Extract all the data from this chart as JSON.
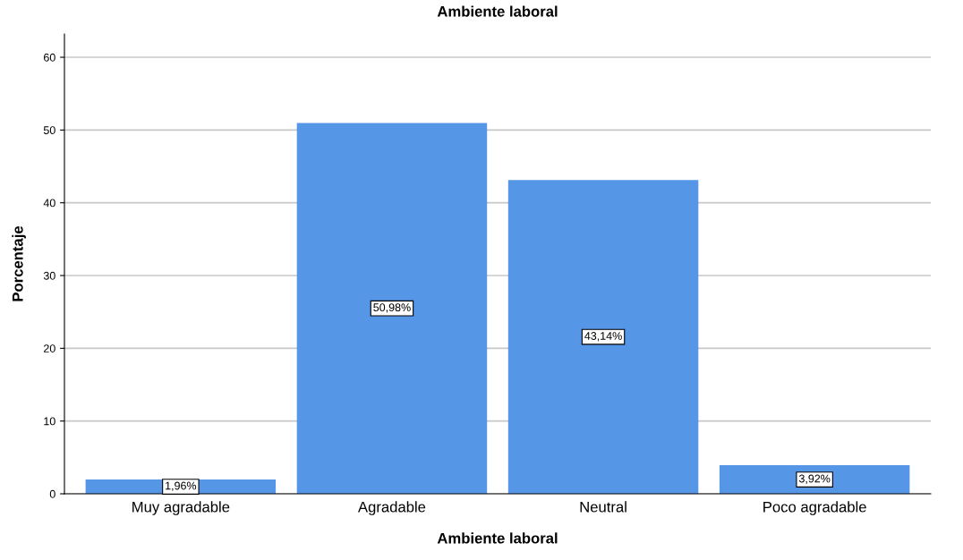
{
  "chart_data": {
    "type": "bar",
    "title": "Ambiente laboral",
    "xlabel": "Ambiente laboral",
    "ylabel": "Porcentaje",
    "categories": [
      "Muy agradable",
      "Agradable",
      "Neutral",
      "Poco agradable"
    ],
    "values": [
      1.96,
      50.98,
      43.14,
      3.92
    ],
    "value_labels": [
      "1,96%",
      "50,98%",
      "43,14%",
      "3,92%"
    ],
    "color": "#5596e6",
    "ylim": [
      0,
      63.2
    ],
    "yticks": [
      0,
      10,
      20,
      30,
      40,
      50,
      60
    ],
    "grid": "y",
    "legend": false
  }
}
